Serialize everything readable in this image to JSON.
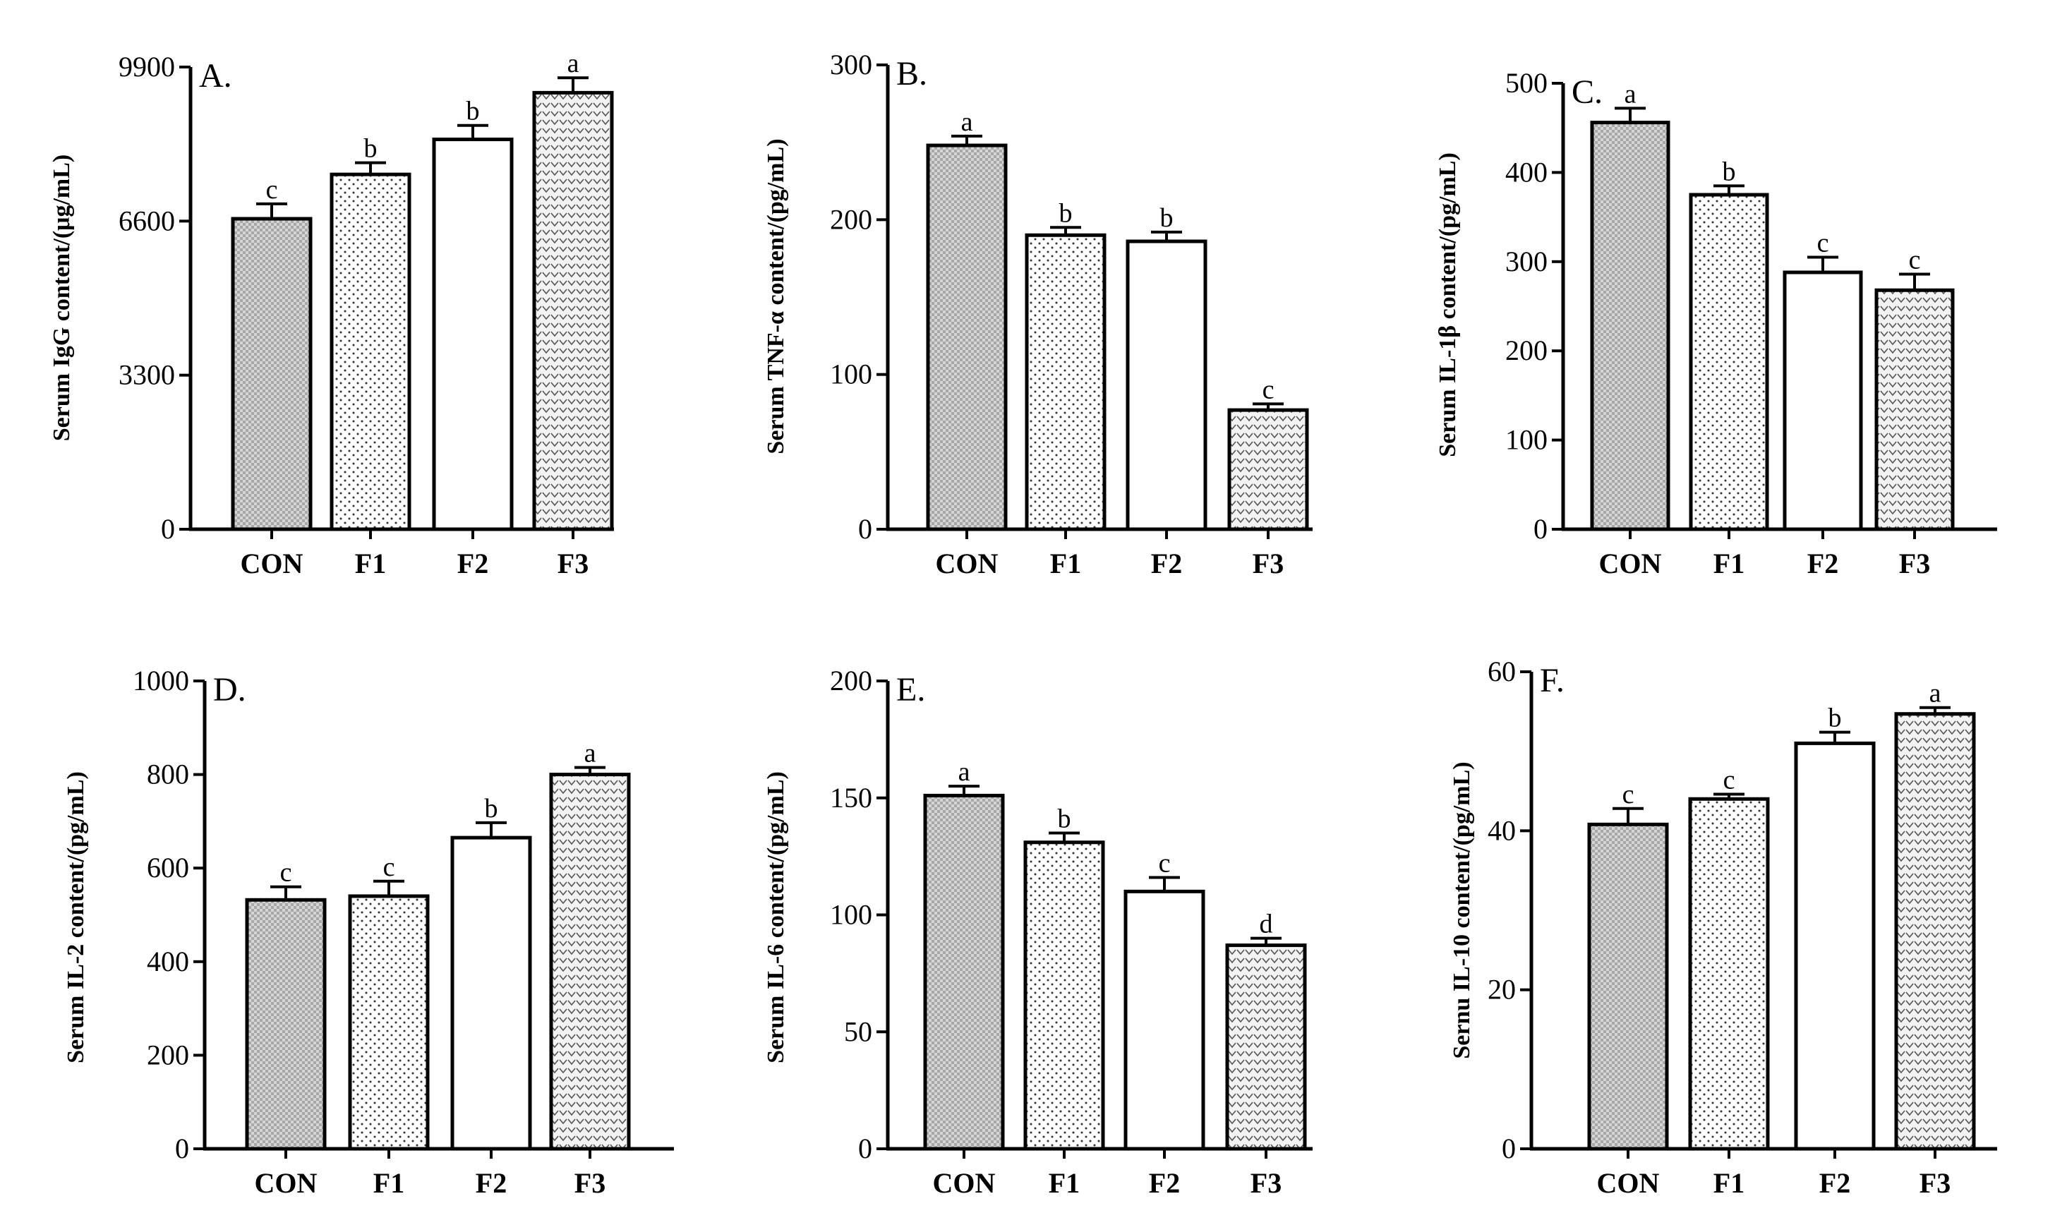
{
  "chart_data": [
    {
      "type": "bar",
      "panel": "A.",
      "ylabel": "Serum IgG content/(μg/mL)",
      "categories": [
        "CON",
        "F1",
        "F2",
        "F3"
      ],
      "values": [
        6650,
        7600,
        8350,
        9350
      ],
      "errors": [
        320,
        250,
        300,
        320
      ],
      "significance": [
        "c",
        "b",
        "b",
        "a"
      ],
      "ylim": [
        0,
        9900
      ],
      "yticks": [
        0,
        3300,
        6600,
        9900
      ],
      "patterns": [
        "checker",
        "dots",
        "none",
        "vee"
      ]
    },
    {
      "type": "bar",
      "panel": "B.",
      "ylabel": "Serum TNF-α content/(pg/mL)",
      "categories": [
        "CON",
        "F1",
        "F2",
        "F3"
      ],
      "values": [
        248,
        190,
        186,
        77
      ],
      "errors": [
        6,
        5,
        6,
        4
      ],
      "significance": [
        "a",
        "b",
        "b",
        "c"
      ],
      "ylim": [
        0,
        300
      ],
      "yticks": [
        0,
        100,
        200,
        300
      ],
      "patterns": [
        "checker",
        "dots",
        "none",
        "vee"
      ]
    },
    {
      "type": "bar",
      "panel": "C.",
      "ylabel": "Serum IL-1β content/(pg/mL)",
      "categories": [
        "CON",
        "F1",
        "F2",
        "F3"
      ],
      "values": [
        456,
        375,
        288,
        268
      ],
      "errors": [
        16,
        10,
        17,
        18
      ],
      "significance": [
        "a",
        "b",
        "c",
        "c"
      ],
      "ylim": [
        0,
        500
      ],
      "yticks": [
        0,
        100,
        200,
        300,
        400,
        500
      ],
      "patterns": [
        "checker",
        "dots",
        "none",
        "vee"
      ]
    },
    {
      "type": "bar",
      "panel": "D.",
      "ylabel": "Serum IL-2 content/(pg/mL)",
      "categories": [
        "CON",
        "F1",
        "F2",
        "F3"
      ],
      "values": [
        532,
        540,
        665,
        800
      ],
      "errors": [
        28,
        32,
        32,
        15
      ],
      "significance": [
        "c",
        "c",
        "b",
        "a"
      ],
      "ylim": [
        0,
        1000
      ],
      "yticks": [
        0,
        200,
        400,
        600,
        800,
        1000
      ],
      "patterns": [
        "checker",
        "dots",
        "none",
        "vee"
      ]
    },
    {
      "type": "bar",
      "panel": "E.",
      "ylabel": "Serum IL-6 content/(pg/mL)",
      "categories": [
        "CON",
        "F1",
        "F2",
        "F3"
      ],
      "values": [
        151,
        131,
        110,
        87
      ],
      "errors": [
        4,
        4,
        6,
        3
      ],
      "significance": [
        "a",
        "b",
        "c",
        "d"
      ],
      "ylim": [
        0,
        200
      ],
      "yticks": [
        0,
        50,
        100,
        150,
        200
      ],
      "patterns": [
        "checker",
        "dots",
        "none",
        "vee"
      ]
    },
    {
      "type": "bar",
      "panel": "F.",
      "ylabel": "Sernu IL-10 content/(pg/mL)",
      "categories": [
        "CON",
        "F1",
        "F2",
        "F3"
      ],
      "values": [
        40.8,
        44.0,
        51.0,
        54.7
      ],
      "errors": [
        2.0,
        0.6,
        1.4,
        0.8
      ],
      "significance": [
        "c",
        "c",
        "b",
        "a"
      ],
      "ylim": [
        0,
        60
      ],
      "yticks": [
        0,
        20,
        40,
        60
      ],
      "patterns": [
        "checker",
        "dots",
        "none",
        "vee"
      ]
    }
  ]
}
